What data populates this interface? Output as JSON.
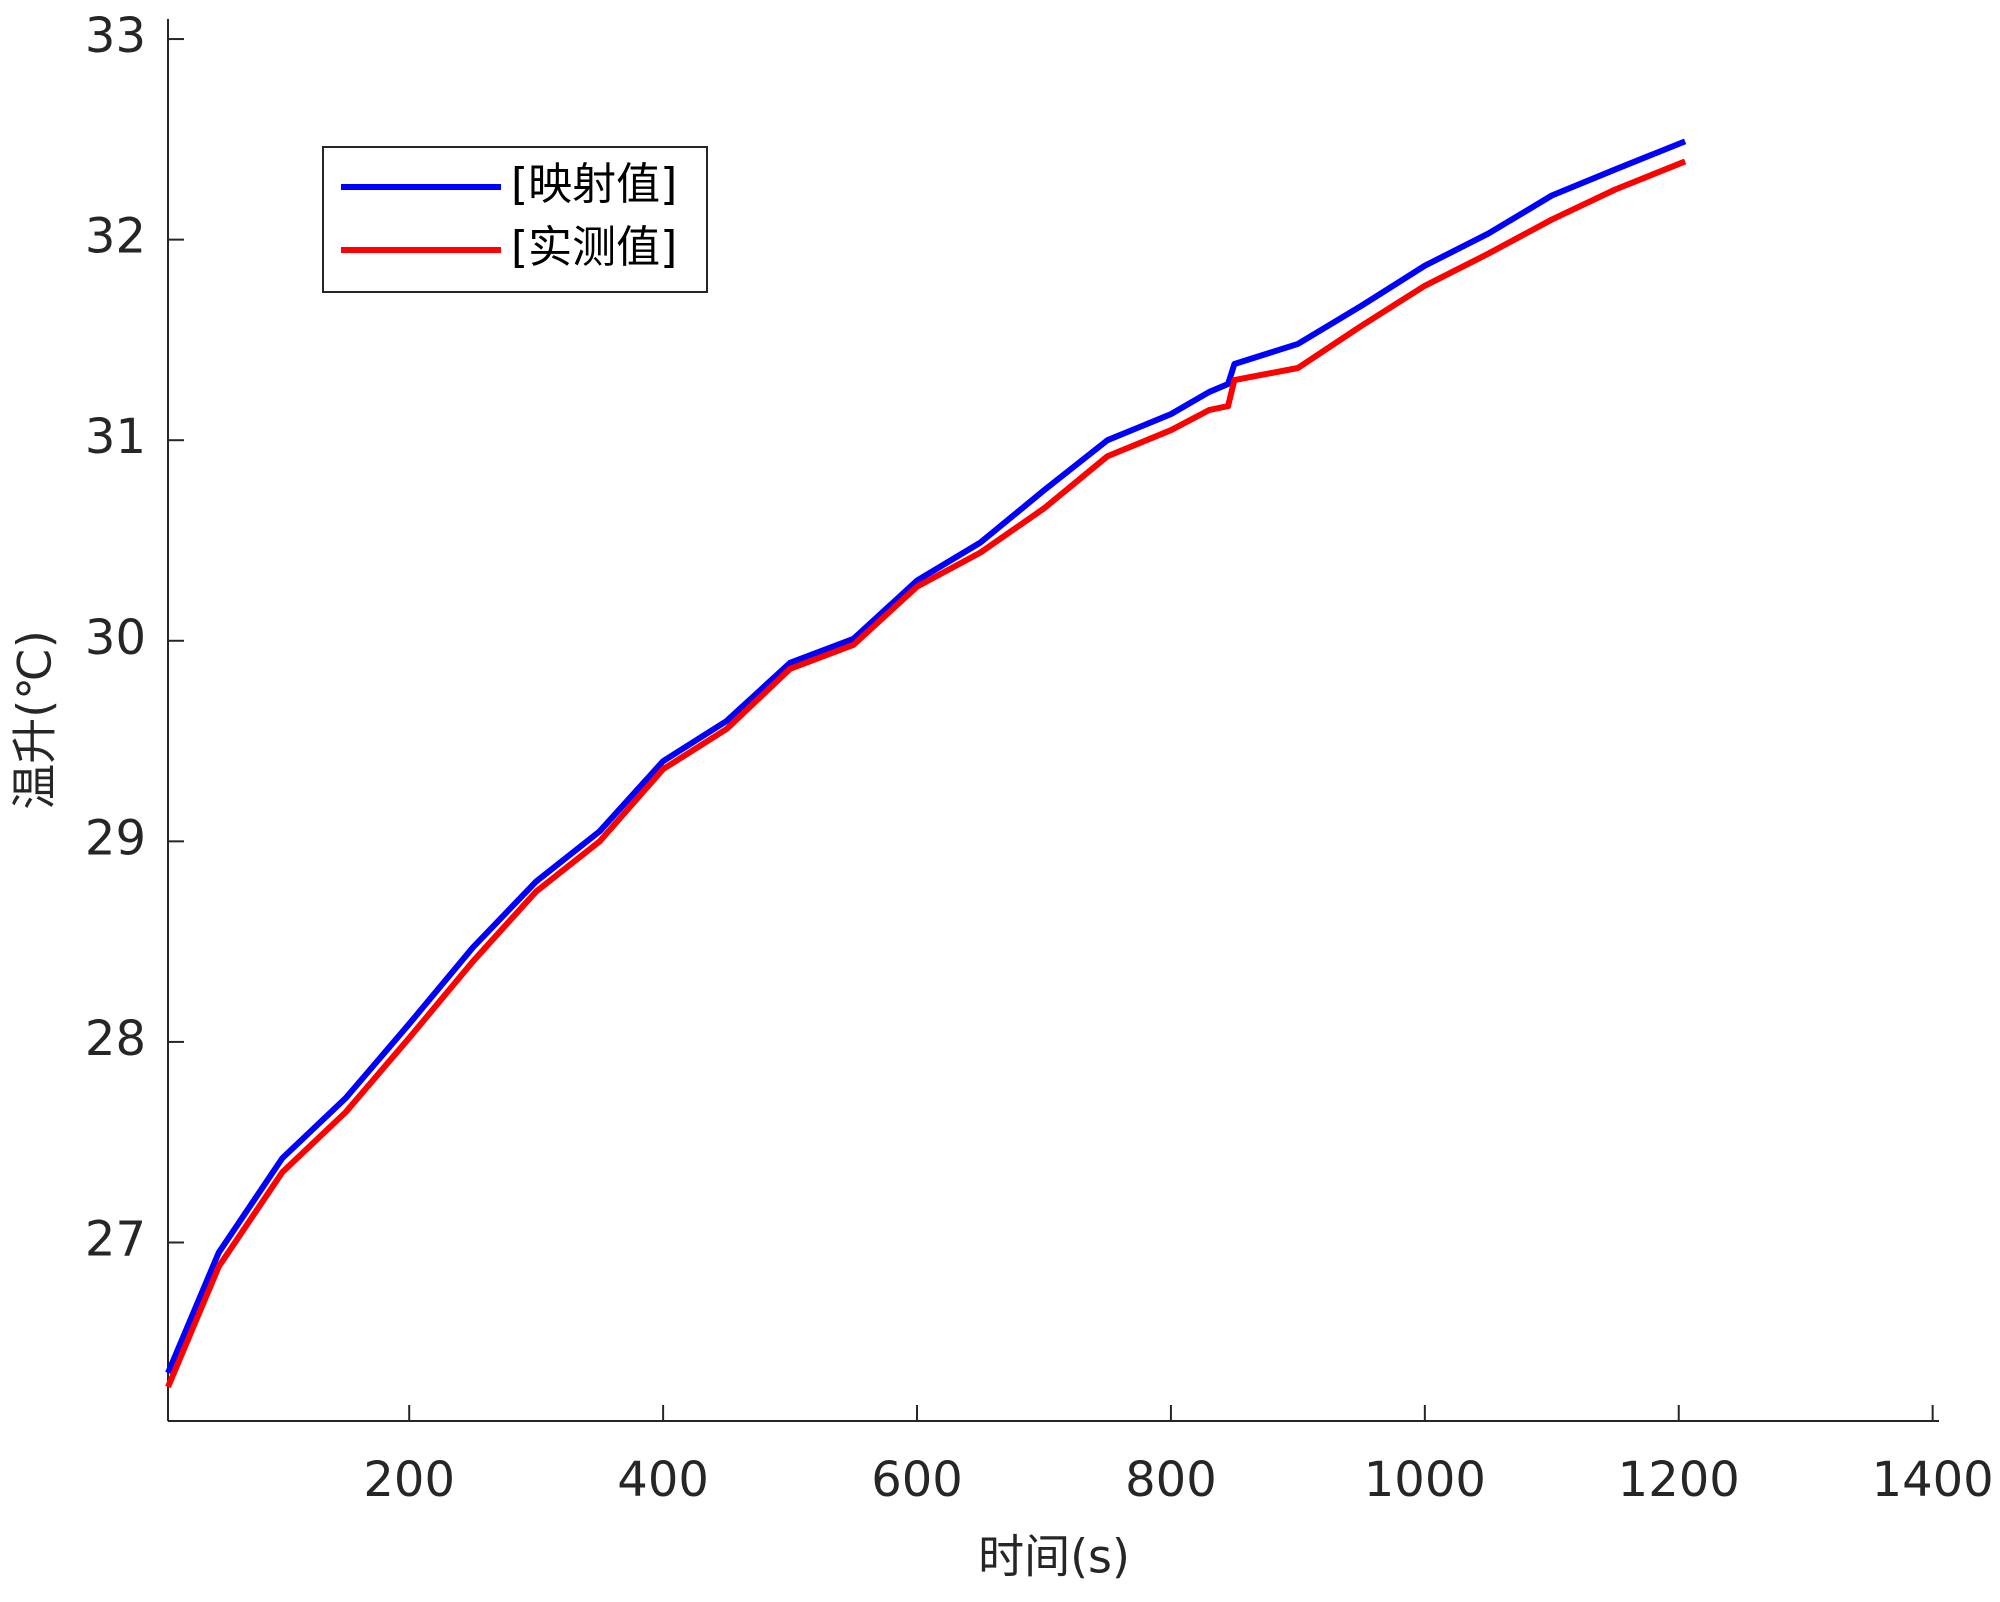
{
  "chart_data": {
    "type": "line",
    "xlabel": "时间(s)",
    "ylabel": "温升(℃)",
    "x": [
      10,
      50,
      100,
      150,
      200,
      250,
      300,
      350,
      400,
      450,
      500,
      550,
      600,
      650,
      700,
      750,
      800,
      830,
      845,
      850,
      900,
      950,
      1000,
      1050,
      1100,
      1150,
      1205
    ],
    "series": [
      {
        "name": "[映射值]",
        "color": "#0000ff",
        "values": [
          26.35,
          26.95,
          27.42,
          27.72,
          28.09,
          28.47,
          28.8,
          29.05,
          29.4,
          29.6,
          29.89,
          30.01,
          30.3,
          30.49,
          30.75,
          31.0,
          31.13,
          31.24,
          31.28,
          31.38,
          31.48,
          31.67,
          31.87,
          32.03,
          32.22,
          32.35,
          32.49
        ]
      },
      {
        "name": "[实测值]",
        "color": "#ff0000",
        "values": [
          26.28,
          26.88,
          27.35,
          27.65,
          28.02,
          28.4,
          28.75,
          29.0,
          29.36,
          29.56,
          29.86,
          29.98,
          30.27,
          30.44,
          30.66,
          30.92,
          31.05,
          31.15,
          31.17,
          31.3,
          31.36,
          31.57,
          31.77,
          31.93,
          32.1,
          32.25,
          32.39
        ]
      }
    ],
    "xlim": [
      10,
      1405
    ],
    "xticks": [
      200,
      400,
      600,
      800,
      1000,
      1200,
      1400
    ],
    "ylim": [
      26.11,
      33.1
    ],
    "yticks": [
      27,
      28,
      29,
      30,
      31,
      32,
      33
    ],
    "legend": "upper left",
    "grid": false
  }
}
